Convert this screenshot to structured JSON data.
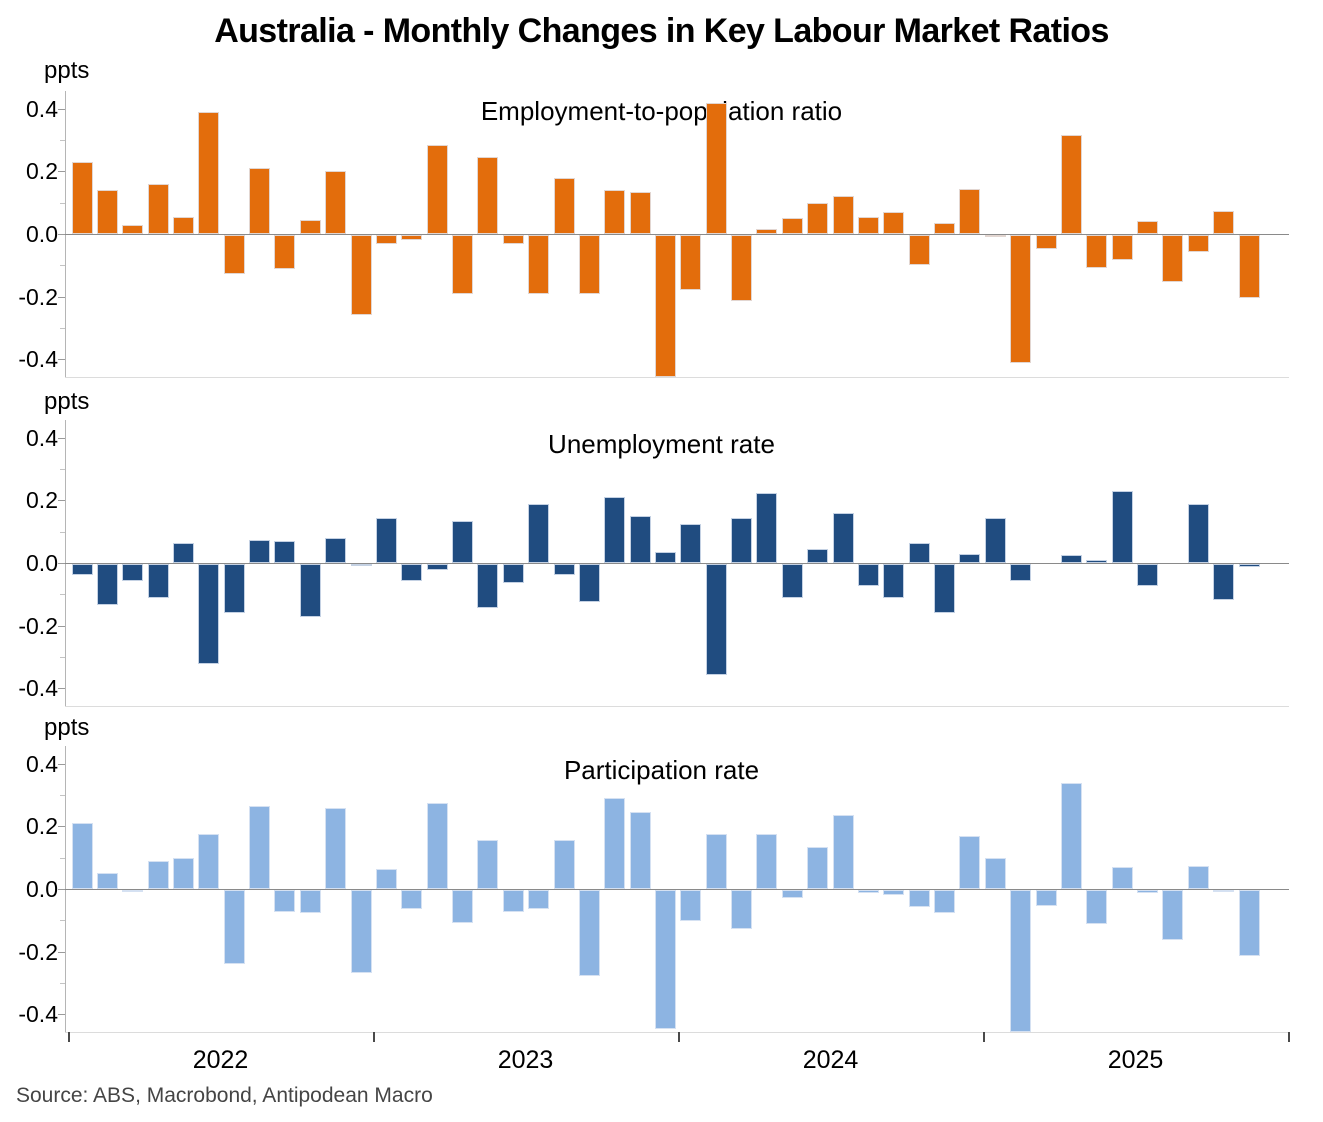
{
  "title": "Australia - Monthly Changes in Key Labour Market Ratios",
  "unit_label": "ppts",
  "source": "Source: ABS, Macrobond, Antipodean Macro",
  "colors": {
    "employment_bars": "#E36D0C",
    "unemployment_bars": "#204C80",
    "participation_bars": "#8DB4E2",
    "zero_line": "#8A8A8A",
    "axis_line": "#B5B5B5",
    "source_text": "#454545"
  },
  "x_axis": {
    "year_labels": [
      "2022",
      "2023",
      "2024",
      "2025"
    ]
  },
  "chart_data": [
    {
      "type": "bar",
      "title": "Employment-to-population ratio",
      "ylabel": "ppts",
      "ylim": [
        -0.46,
        0.46
      ],
      "ytick_values": [
        0.4,
        0.2,
        0.0,
        -0.2,
        -0.4
      ],
      "grid": false,
      "legend": "none",
      "months": [
        "2022-01",
        "2022-02",
        "2022-03",
        "2022-04",
        "2022-05",
        "2022-06",
        "2022-07",
        "2022-08",
        "2022-09",
        "2022-10",
        "2022-11",
        "2022-12",
        "2023-01",
        "2023-02",
        "2023-03",
        "2023-04",
        "2023-05",
        "2023-06",
        "2023-07",
        "2023-08",
        "2023-09",
        "2023-10",
        "2023-11",
        "2023-12",
        "2024-01",
        "2024-02",
        "2024-03",
        "2024-04",
        "2024-05",
        "2024-06",
        "2024-07",
        "2024-08",
        "2024-09",
        "2024-10",
        "2024-11",
        "2024-12",
        "2025-01",
        "2025-02",
        "2025-03",
        "2025-04",
        "2025-05",
        "2025-06",
        "2025-07",
        "2025-08",
        "2025-09",
        "2025-10",
        "2025-11"
      ],
      "values": [
        0.23,
        0.14,
        0.03,
        0.16,
        0.055,
        0.39,
        -0.125,
        0.21,
        -0.11,
        0.045,
        0.2,
        -0.255,
        -0.03,
        -0.015,
        0.285,
        -0.19,
        0.245,
        -0.03,
        -0.19,
        0.18,
        -0.19,
        0.14,
        0.135,
        -0.455,
        -0.175,
        0.42,
        -0.21,
        0.015,
        0.05,
        0.1,
        0.12,
        0.055,
        0.07,
        -0.095,
        0.035,
        0.145,
        -0.005,
        -0.41,
        -0.045,
        0.315,
        -0.105,
        -0.08,
        0.04,
        -0.15,
        -0.055,
        0.075,
        -0.2
      ]
    },
    {
      "type": "bar",
      "title": "Unemployment rate",
      "ylabel": "ppts",
      "ylim": [
        -0.46,
        0.46
      ],
      "ytick_values": [
        0.4,
        0.2,
        0.0,
        -0.2,
        -0.4
      ],
      "grid": false,
      "legend": "none",
      "months": [
        "2022-01",
        "2022-02",
        "2022-03",
        "2022-04",
        "2022-05",
        "2022-06",
        "2022-07",
        "2022-08",
        "2022-09",
        "2022-10",
        "2022-11",
        "2022-12",
        "2023-01",
        "2023-02",
        "2023-03",
        "2023-04",
        "2023-05",
        "2023-06",
        "2023-07",
        "2023-08",
        "2023-09",
        "2023-10",
        "2023-11",
        "2023-12",
        "2024-01",
        "2024-02",
        "2024-03",
        "2024-04",
        "2024-05",
        "2024-06",
        "2024-07",
        "2024-08",
        "2024-09",
        "2024-10",
        "2024-11",
        "2024-12",
        "2025-01",
        "2025-02",
        "2025-03",
        "2025-04",
        "2025-05",
        "2025-06",
        "2025-07",
        "2025-08",
        "2025-09",
        "2025-10",
        "2025-11"
      ],
      "values": [
        -0.035,
        -0.13,
        -0.055,
        -0.11,
        0.065,
        -0.32,
        -0.155,
        0.075,
        0.07,
        -0.17,
        0.08,
        -0.005,
        0.145,
        -0.055,
        -0.02,
        0.135,
        -0.14,
        -0.06,
        0.19,
        -0.035,
        -0.12,
        0.21,
        0.15,
        0.035,
        0.125,
        -0.355,
        0.145,
        0.225,
        -0.11,
        0.045,
        0.16,
        -0.07,
        -0.11,
        0.065,
        -0.155,
        0.03,
        0.145,
        -0.055,
        0.0,
        0.025,
        0.01,
        0.23,
        -0.07,
        0.0,
        0.19,
        -0.115,
        -0.01
      ]
    },
    {
      "type": "bar",
      "title": "Participation rate",
      "ylabel": "ppts",
      "ylim": [
        -0.46,
        0.46
      ],
      "ytick_values": [
        0.4,
        0.2,
        0.0,
        -0.2,
        -0.4
      ],
      "grid": false,
      "legend": "none",
      "months": [
        "2022-01",
        "2022-02",
        "2022-03",
        "2022-04",
        "2022-05",
        "2022-06",
        "2022-07",
        "2022-08",
        "2022-09",
        "2022-10",
        "2022-11",
        "2022-12",
        "2023-01",
        "2023-02",
        "2023-03",
        "2023-04",
        "2023-05",
        "2023-06",
        "2023-07",
        "2023-08",
        "2023-09",
        "2023-10",
        "2023-11",
        "2023-12",
        "2024-01",
        "2024-02",
        "2024-03",
        "2024-04",
        "2024-05",
        "2024-06",
        "2024-07",
        "2024-08",
        "2024-09",
        "2024-10",
        "2024-11",
        "2024-12",
        "2025-01",
        "2025-02",
        "2025-03",
        "2025-04",
        "2025-05",
        "2025-06",
        "2025-07",
        "2025-08",
        "2025-09",
        "2025-10",
        "2025-11"
      ],
      "values": [
        0.21,
        0.05,
        -0.005,
        0.09,
        0.1,
        0.175,
        -0.235,
        0.265,
        -0.07,
        -0.075,
        0.26,
        -0.265,
        0.065,
        -0.06,
        0.275,
        -0.105,
        0.155,
        -0.07,
        -0.06,
        0.155,
        -0.275,
        0.29,
        0.245,
        -0.445,
        -0.1,
        0.175,
        -0.125,
        0.175,
        -0.025,
        0.135,
        0.235,
        -0.01,
        -0.015,
        -0.055,
        -0.075,
        0.17,
        0.1,
        -0.46,
        -0.05,
        0.34,
        -0.11,
        0.07,
        -0.01,
        -0.16,
        0.075,
        -0.005,
        -0.21
      ]
    }
  ]
}
